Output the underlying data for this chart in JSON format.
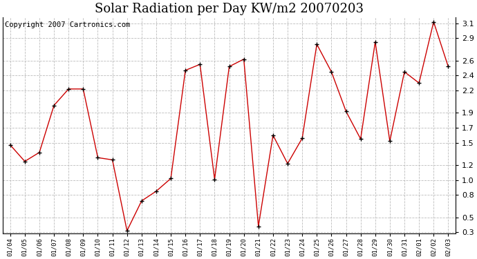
{
  "title": "Solar Radiation per Day KW/m2 20070203",
  "copyright": "Copyright 2007 Cartronics.com",
  "dates": [
    "01/04",
    "01/05",
    "01/06",
    "01/07",
    "01/08",
    "01/09",
    "01/10",
    "01/11",
    "01/12",
    "01/13",
    "01/14",
    "01/15",
    "01/16",
    "01/17",
    "01/18",
    "01/19",
    "01/20",
    "01/21",
    "01/22",
    "01/23",
    "01/24",
    "01/25",
    "01/26",
    "01/27",
    "01/28",
    "01/29",
    "01/30",
    "01/31",
    "02/01",
    "02/02",
    "02/03"
  ],
  "values": [
    1.47,
    1.25,
    1.37,
    2.0,
    2.22,
    2.22,
    1.3,
    1.27,
    0.32,
    0.72,
    0.85,
    1.02,
    2.47,
    2.55,
    1.01,
    2.52,
    2.62,
    0.38,
    1.6,
    1.22,
    1.56,
    2.82,
    2.45,
    1.92,
    1.55,
    2.85,
    1.52,
    2.45,
    2.3,
    3.12,
    2.52
  ],
  "line_color": "#cc0000",
  "marker_color": "#000000",
  "bg_color": "#ffffff",
  "grid_color": "#bbbbbb",
  "ylim": [
    0.28,
    3.18
  ],
  "yticks": [
    0.3,
    0.5,
    0.8,
    1.0,
    1.2,
    1.5,
    1.7,
    1.9,
    2.2,
    2.4,
    2.6,
    2.9,
    3.1
  ],
  "title_fontsize": 13,
  "copyright_fontsize": 7.5
}
